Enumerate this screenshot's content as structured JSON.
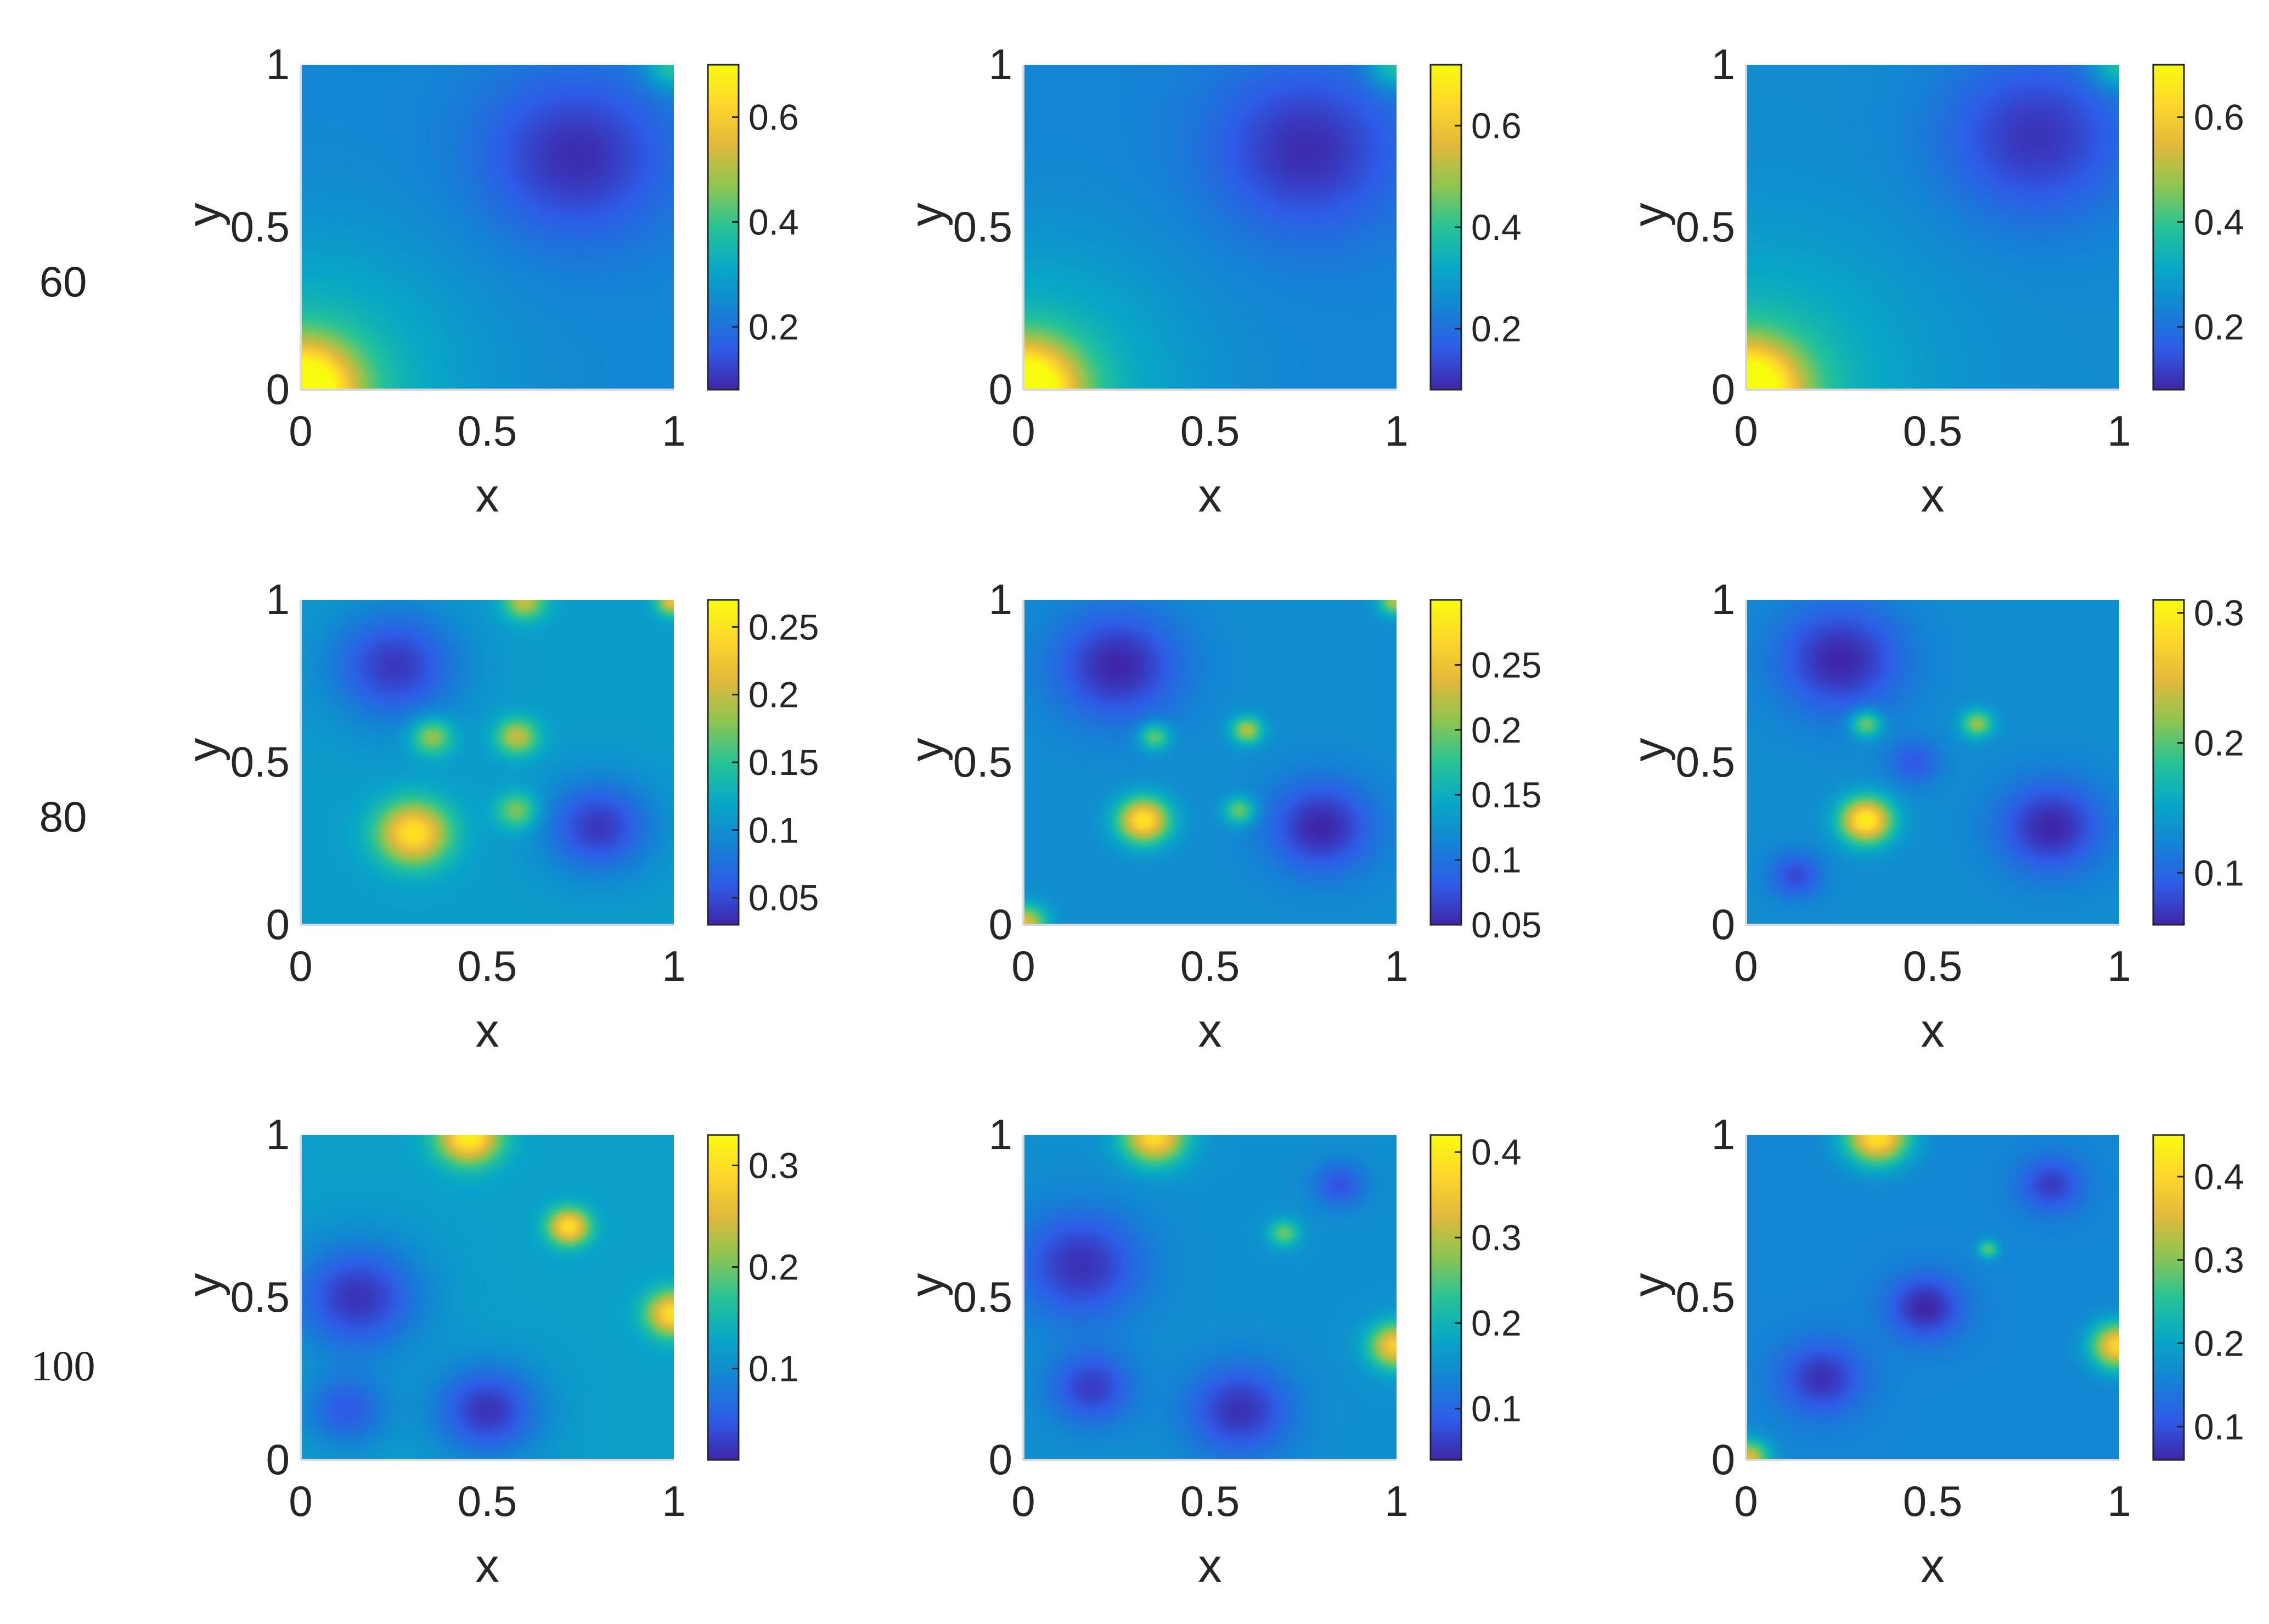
{
  "row_labels": [
    "60",
    "80",
    "100"
  ],
  "chart_data": {
    "type": "heatmap",
    "layout": "3x3 grid",
    "xlabel": "x",
    "ylabel": "y",
    "xlim": [
      0,
      1
    ],
    "ylim": [
      0,
      1
    ],
    "xticks": [
      "0",
      "0.5",
      "1"
    ],
    "yticks": [
      "0",
      "0.5",
      "1"
    ],
    "colormap": "parula",
    "colormap_stops": [
      "#3e26a8",
      "#2e5ce7",
      "#1484d4",
      "#08a8c6",
      "#27c396",
      "#8cc551",
      "#e0b93b",
      "#fdd72c",
      "#f9fb0e"
    ],
    "panels": [
      {
        "row": "60",
        "col": 1,
        "clim": [
          0.08,
          0.7
        ],
        "colorbar_ticks": [
          "0.2",
          "0.4",
          "0.6"
        ],
        "colorbar_tick_values": [
          0.2,
          0.4,
          0.6
        ],
        "features": [
          {
            "x": 0.0,
            "y": 0.0,
            "v": 0.7,
            "s": 0.1
          },
          {
            "x": 0.0,
            "y": 0.0,
            "v": 0.38,
            "s": 0.3
          },
          {
            "x": 0.74,
            "y": 0.72,
            "v": 0.09,
            "s": 0.18
          },
          {
            "x": 1.0,
            "y": 1.0,
            "v": 0.4,
            "s": 0.05
          }
        ],
        "base": 0.24
      },
      {
        "row": "60",
        "col": 2,
        "clim": [
          0.08,
          0.72
        ],
        "colorbar_ticks": [
          "0.2",
          "0.4",
          "0.6"
        ],
        "colorbar_tick_values": [
          0.2,
          0.4,
          0.6
        ],
        "features": [
          {
            "x": 0.0,
            "y": 0.0,
            "v": 0.72,
            "s": 0.1
          },
          {
            "x": 0.0,
            "y": 0.0,
            "v": 0.38,
            "s": 0.3
          },
          {
            "x": 0.76,
            "y": 0.74,
            "v": 0.09,
            "s": 0.18
          },
          {
            "x": 1.0,
            "y": 1.0,
            "v": 0.4,
            "s": 0.05
          }
        ],
        "base": 0.24
      },
      {
        "row": "60",
        "col": 3,
        "clim": [
          0.08,
          0.7
        ],
        "colorbar_ticks": [
          "0.2",
          "0.4",
          "0.6"
        ],
        "colorbar_tick_values": [
          0.2,
          0.4,
          0.6
        ],
        "features": [
          {
            "x": 0.0,
            "y": 0.0,
            "v": 0.7,
            "s": 0.1
          },
          {
            "x": 0.0,
            "y": 0.0,
            "v": 0.38,
            "s": 0.3
          },
          {
            "x": 0.78,
            "y": 0.78,
            "v": 0.1,
            "s": 0.18
          },
          {
            "x": 1.0,
            "y": 1.0,
            "v": 0.4,
            "s": 0.05
          }
        ],
        "base": 0.25
      },
      {
        "row": "80",
        "col": 1,
        "clim": [
          0.03,
          0.27
        ],
        "colorbar_ticks": [
          "0.05",
          "0.1",
          "0.15",
          "0.2",
          "0.25"
        ],
        "colorbar_tick_values": [
          0.05,
          0.1,
          0.15,
          0.2,
          0.25
        ],
        "features": [
          {
            "x": 0.25,
            "y": 0.8,
            "v": 0.04,
            "s": 0.12
          },
          {
            "x": 0.8,
            "y": 0.3,
            "v": 0.04,
            "s": 0.1
          },
          {
            "x": 0.3,
            "y": 0.28,
            "v": 0.25,
            "s": 0.07
          },
          {
            "x": 0.58,
            "y": 0.58,
            "v": 0.2,
            "s": 0.04
          },
          {
            "x": 0.35,
            "y": 0.58,
            "v": 0.19,
            "s": 0.04
          },
          {
            "x": 0.58,
            "y": 0.35,
            "v": 0.18,
            "s": 0.04
          },
          {
            "x": 0.6,
            "y": 1.0,
            "v": 0.2,
            "s": 0.04
          },
          {
            "x": 1.0,
            "y": 1.0,
            "v": 0.22,
            "s": 0.03
          }
        ],
        "base": 0.11
      },
      {
        "row": "80",
        "col": 2,
        "clim": [
          0.05,
          0.3
        ],
        "colorbar_ticks": [
          "0.05",
          "0.1",
          "0.15",
          "0.2",
          "0.25"
        ],
        "colorbar_tick_values": [
          0.05,
          0.1,
          0.15,
          0.2,
          0.25
        ],
        "features": [
          {
            "x": 0.25,
            "y": 0.8,
            "v": 0.05,
            "s": 0.12
          },
          {
            "x": 0.8,
            "y": 0.3,
            "v": 0.05,
            "s": 0.1
          },
          {
            "x": 0.32,
            "y": 0.32,
            "v": 0.28,
            "s": 0.05
          },
          {
            "x": 0.6,
            "y": 0.6,
            "v": 0.22,
            "s": 0.03
          },
          {
            "x": 0.35,
            "y": 0.58,
            "v": 0.2,
            "s": 0.03
          },
          {
            "x": 0.58,
            "y": 0.35,
            "v": 0.2,
            "s": 0.03
          },
          {
            "x": 0.0,
            "y": 0.0,
            "v": 0.24,
            "s": 0.04
          },
          {
            "x": 1.0,
            "y": 1.0,
            "v": 0.22,
            "s": 0.03
          }
        ],
        "base": 0.12
      },
      {
        "row": "80",
        "col": 3,
        "clim": [
          0.06,
          0.31
        ],
        "colorbar_ticks": [
          "0.1",
          "0.2",
          "0.3"
        ],
        "colorbar_tick_values": [
          0.1,
          0.2,
          0.3
        ],
        "features": [
          {
            "x": 0.25,
            "y": 0.82,
            "v": 0.06,
            "s": 0.12
          },
          {
            "x": 0.82,
            "y": 0.3,
            "v": 0.06,
            "s": 0.1
          },
          {
            "x": 0.32,
            "y": 0.32,
            "v": 0.3,
            "s": 0.05
          },
          {
            "x": 0.62,
            "y": 0.62,
            "v": 0.22,
            "s": 0.03
          },
          {
            "x": 0.32,
            "y": 0.62,
            "v": 0.22,
            "s": 0.03
          },
          {
            "x": 0.45,
            "y": 0.5,
            "v": 0.09,
            "s": 0.05
          },
          {
            "x": 0.13,
            "y": 0.15,
            "v": 0.08,
            "s": 0.05
          }
        ],
        "base": 0.13
      },
      {
        "row": "100",
        "col": 1,
        "clim": [
          0.01,
          0.33
        ],
        "colorbar_ticks": [
          "0.1",
          "0.2",
          "0.3"
        ],
        "colorbar_tick_values": [
          0.1,
          0.2,
          0.3
        ],
        "features": [
          {
            "x": 0.15,
            "y": 0.5,
            "v": 0.02,
            "s": 0.12
          },
          {
            "x": 0.5,
            "y": 0.15,
            "v": 0.02,
            "s": 0.1
          },
          {
            "x": 0.72,
            "y": 0.72,
            "v": 0.3,
            "s": 0.04
          },
          {
            "x": 0.45,
            "y": 1.0,
            "v": 0.32,
            "s": 0.06
          },
          {
            "x": 1.0,
            "y": 0.45,
            "v": 0.3,
            "s": 0.05
          },
          {
            "x": 0.12,
            "y": 0.15,
            "v": 0.05,
            "s": 0.08
          }
        ],
        "base": 0.12
      },
      {
        "row": "100",
        "col": 2,
        "clim": [
          0.04,
          0.42
        ],
        "colorbar_ticks": [
          "0.1",
          "0.2",
          "0.3",
          "0.4"
        ],
        "colorbar_tick_values": [
          0.1,
          0.2,
          0.3,
          0.4
        ],
        "features": [
          {
            "x": 0.15,
            "y": 0.6,
            "v": 0.05,
            "s": 0.12
          },
          {
            "x": 0.58,
            "y": 0.15,
            "v": 0.05,
            "s": 0.1
          },
          {
            "x": 0.18,
            "y": 0.22,
            "v": 0.06,
            "s": 0.08
          },
          {
            "x": 0.35,
            "y": 1.0,
            "v": 0.38,
            "s": 0.06
          },
          {
            "x": 1.0,
            "y": 0.35,
            "v": 0.36,
            "s": 0.05
          },
          {
            "x": 0.85,
            "y": 0.85,
            "v": 0.08,
            "s": 0.05
          },
          {
            "x": 0.7,
            "y": 0.7,
            "v": 0.26,
            "s": 0.03
          }
        ],
        "base": 0.15
      },
      {
        "row": "100",
        "col": 3,
        "clim": [
          0.06,
          0.45
        ],
        "colorbar_ticks": [
          "0.1",
          "0.2",
          "0.3",
          "0.4"
        ],
        "colorbar_tick_values": [
          0.1,
          0.2,
          0.3,
          0.4
        ],
        "features": [
          {
            "x": 0.48,
            "y": 0.47,
            "v": 0.06,
            "s": 0.07
          },
          {
            "x": 0.2,
            "y": 0.25,
            "v": 0.07,
            "s": 0.08
          },
          {
            "x": 0.82,
            "y": 0.85,
            "v": 0.08,
            "s": 0.06
          },
          {
            "x": 0.35,
            "y": 1.0,
            "v": 0.42,
            "s": 0.06
          },
          {
            "x": 1.0,
            "y": 0.35,
            "v": 0.4,
            "s": 0.05
          },
          {
            "x": 0.0,
            "y": 0.0,
            "v": 0.36,
            "s": 0.04
          },
          {
            "x": 0.65,
            "y": 0.65,
            "v": 0.28,
            "s": 0.02
          }
        ],
        "base": 0.16
      }
    ]
  }
}
